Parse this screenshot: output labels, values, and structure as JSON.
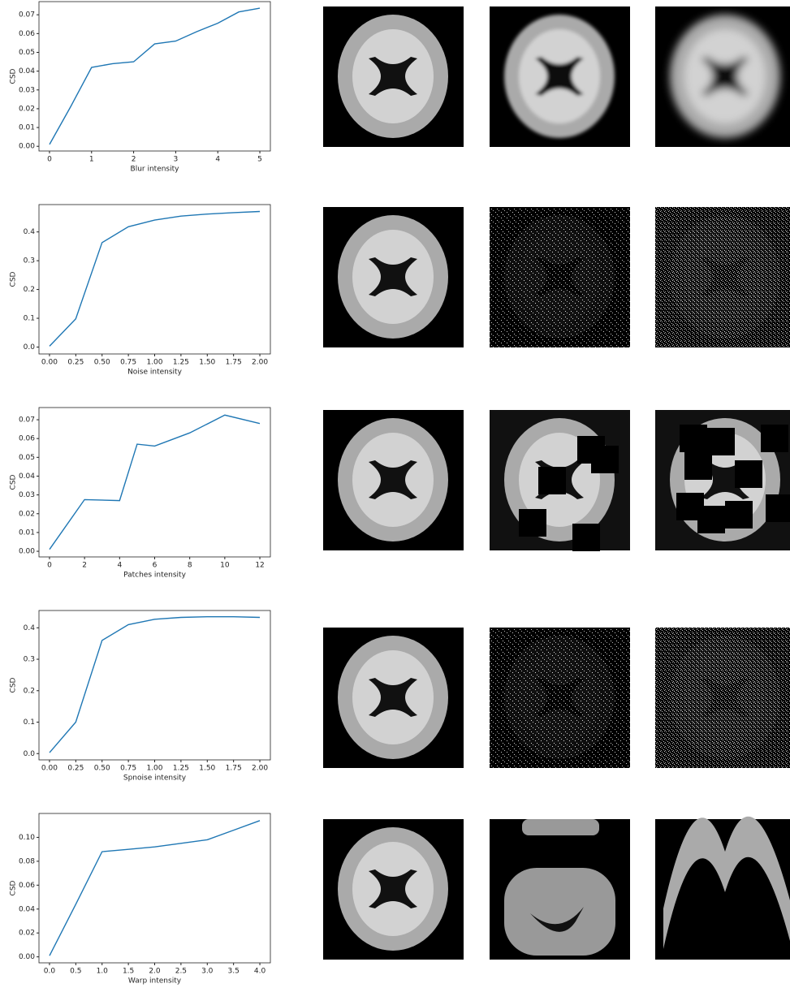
{
  "chart_data": [
    {
      "type": "line",
      "ylabel": "CSD",
      "xlabel": "Blur intensity",
      "color": "#1f77b4",
      "x": [
        0,
        0.5,
        1,
        1.5,
        2,
        2.5,
        3,
        3.5,
        4,
        4.5,
        5
      ],
      "values": [
        0.001,
        0.021,
        0.042,
        0.044,
        0.045,
        0.0545,
        0.056,
        0.061,
        0.0655,
        0.0715,
        0.0735
      ],
      "xlim": [
        -0.25,
        5.25
      ],
      "ylim": [
        -0.0025,
        0.077
      ],
      "xticks": [
        0,
        1,
        2,
        3,
        4,
        5
      ],
      "yticks": [
        {
          "value": 0,
          "label": "0.00"
        },
        0.01,
        0.02,
        0.03,
        0.04,
        0.05,
        0.06,
        0.07
      ]
    },
    {
      "type": "line",
      "ylabel": "CSD",
      "xlabel": "Noise intensity",
      "color": "#1f77b4",
      "x": [
        0,
        0.25,
        0.5,
        0.75,
        1,
        1.25,
        1.5,
        1.75,
        2
      ],
      "values": [
        0.003,
        0.098,
        0.363,
        0.418,
        0.441,
        0.455,
        0.462,
        0.467,
        0.471
      ],
      "xlim": [
        -0.1,
        2.1
      ],
      "ylim": [
        -0.024,
        0.495
      ],
      "xticks": [
        {
          "value": 0,
          "label": "0.00"
        },
        0.25,
        {
          "value": 0.5,
          "label": "0.50"
        },
        0.75,
        {
          "value": 1,
          "label": "1.00"
        },
        1.25,
        {
          "value": 1.5,
          "label": "1.50"
        },
        1.75,
        {
          "value": 2,
          "label": "2.00"
        }
      ],
      "yticks": [
        {
          "value": 0,
          "label": "0.0"
        },
        0.1,
        0.2,
        0.3,
        0.4
      ]
    },
    {
      "type": "line",
      "ylabel": "CSD",
      "xlabel": "Patches intensity",
      "color": "#1f77b4",
      "x": [
        0,
        2,
        4,
        5,
        6,
        7,
        8,
        10,
        12
      ],
      "values": [
        0.001,
        0.0275,
        0.027,
        0.057,
        0.056,
        0.0595,
        0.063,
        0.0725,
        0.068
      ],
      "xlim": [
        -0.6,
        12.6
      ],
      "ylim": [
        -0.003,
        0.0765
      ],
      "xticks": [
        0,
        2,
        4,
        6,
        8,
        10,
        12
      ],
      "yticks": [
        {
          "value": 0,
          "label": "0.00"
        },
        0.01,
        0.02,
        0.03,
        0.04,
        0.05,
        0.06,
        0.07
      ]
    },
    {
      "type": "line",
      "ylabel": "CSD",
      "xlabel": "Spnoise intensity",
      "color": "#1f77b4",
      "x": [
        0,
        0.25,
        0.5,
        0.75,
        1,
        1.25,
        1.5,
        1.75,
        2
      ],
      "values": [
        0.003,
        0.1,
        0.36,
        0.41,
        0.427,
        0.433,
        0.435,
        0.435,
        0.433
      ],
      "xlim": [
        -0.1,
        2.1
      ],
      "ylim": [
        -0.02,
        0.455
      ],
      "xticks": [
        {
          "value": 0,
          "label": "0.00"
        },
        0.25,
        {
          "value": 0.5,
          "label": "0.50"
        },
        0.75,
        {
          "value": 1,
          "label": "1.00"
        },
        1.25,
        {
          "value": 1.5,
          "label": "1.50"
        },
        1.75,
        {
          "value": 2,
          "label": "2.00"
        }
      ],
      "yticks": [
        {
          "value": 0,
          "label": "0.0"
        },
        0.1,
        0.2,
        0.3,
        0.4
      ]
    },
    {
      "type": "line",
      "ylabel": "CSD",
      "xlabel": "Warp intensity",
      "color": "#1f77b4",
      "x": [
        0,
        0.5,
        1,
        1.5,
        2,
        2.5,
        3,
        3.5,
        4
      ],
      "values": [
        0.001,
        0.044,
        0.088,
        0.09,
        0.092,
        0.095,
        0.098,
        0.106,
        0.114
      ],
      "xlim": [
        -0.2,
        4.2
      ],
      "ylim": [
        -0.005,
        0.12
      ],
      "xticks": [
        {
          "value": 0,
          "label": "0.0"
        },
        0.5,
        {
          "value": 1,
          "label": "1.0"
        },
        1.5,
        {
          "value": 2,
          "label": "2.0"
        },
        2.5,
        {
          "value": 3,
          "label": "3.0"
        },
        3.5,
        {
          "value": 4,
          "label": "4.0"
        }
      ],
      "yticks": [
        {
          "value": 0,
          "label": "0.00"
        },
        0.02,
        0.04,
        0.06,
        0.08,
        {
          "value": 0.1,
          "label": "0.10"
        }
      ]
    }
  ]
}
